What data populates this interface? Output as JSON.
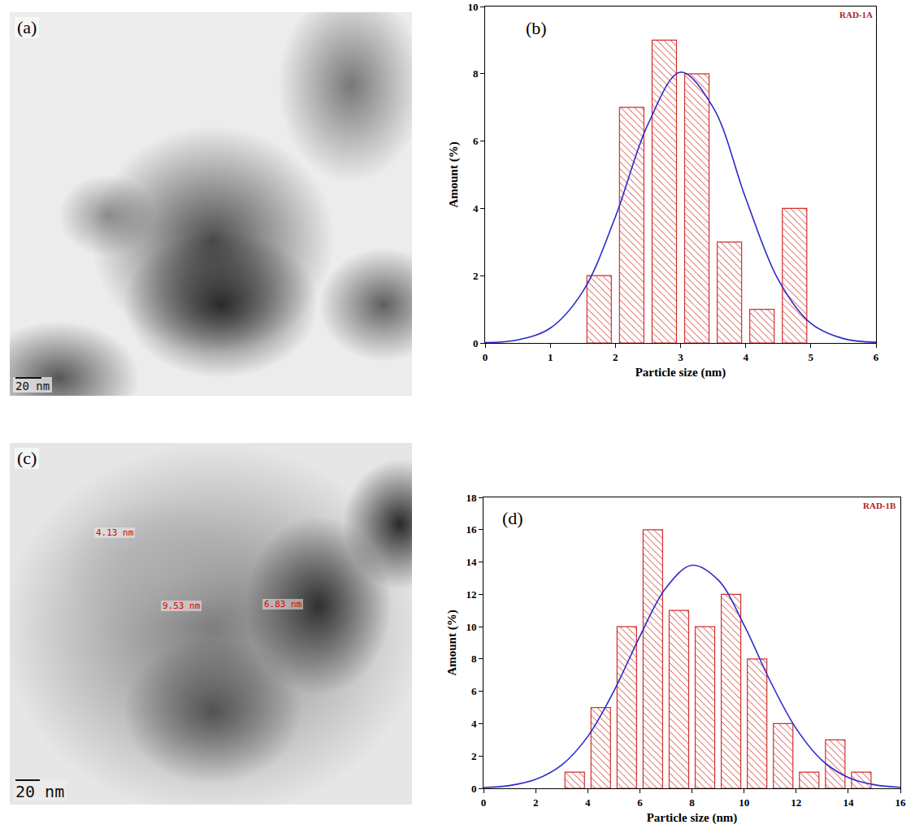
{
  "images": [
    {
      "label": "(a)",
      "scale_bar": "20 nm"
    },
    {
      "label": "(c)",
      "scale_bar": "20 nm",
      "measurements": [
        "4.13 nm",
        "9.53 nm",
        "6.83 nm"
      ]
    }
  ],
  "chart_data": [
    {
      "type": "histogram",
      "label": "(b)",
      "title": "RAD-1A",
      "x_label": "Particle size (nm)",
      "y_label": "Amount (%)",
      "bins": [
        1.5,
        2.0,
        2.5,
        3.0,
        3.5,
        4.0,
        4.5,
        5.0
      ],
      "values": [
        2,
        7,
        9,
        8,
        3,
        1,
        4
      ],
      "color": "#d0312d",
      "fit": {
        "type": "line",
        "color": "#2b2bc8",
        "x": [
          0,
          0.5,
          1,
          1.5,
          2,
          2.5,
          3,
          3.5,
          4,
          4.5,
          5,
          5.5,
          6
        ],
        "values": [
          0.01,
          0.09,
          0.44,
          1.53,
          3.75,
          6.5,
          8.05,
          7.0,
          4.3,
          1.88,
          0.58,
          0.13,
          0.02
        ]
      },
      "xlim": [
        0,
        6
      ],
      "xticks": [
        0,
        1,
        2,
        3,
        4,
        5,
        6
      ],
      "ylim": [
        0,
        10
      ],
      "yticks": [
        0,
        2,
        4,
        6,
        8,
        10
      ],
      "grid": false
    },
    {
      "type": "histogram",
      "label": "(d)",
      "title": "RAD-1B",
      "x_label": "Particle size (nm)",
      "y_label": "Amount (%)",
      "bins": [
        3,
        4,
        5,
        6,
        7,
        8,
        9,
        10,
        11,
        12,
        13,
        14,
        15
      ],
      "values": [
        1,
        5,
        10,
        16,
        11,
        10,
        12,
        8,
        4,
        1,
        3,
        1
      ],
      "color": "#d0312d",
      "fit": {
        "type": "line",
        "color": "#2b2bc8",
        "x": [
          0,
          1,
          2,
          3,
          4,
          5,
          6,
          7,
          8,
          9,
          10,
          11,
          12,
          13,
          14,
          15,
          16
        ],
        "values": [
          0.05,
          0.17,
          0.55,
          1.44,
          3.2,
          6.0,
          9.4,
          12.4,
          13.8,
          12.9,
          10.1,
          6.65,
          3.7,
          1.72,
          0.67,
          0.22,
          0.06
        ]
      },
      "xlim": [
        0,
        16
      ],
      "xticks": [
        0,
        2,
        4,
        6,
        8,
        10,
        12,
        14,
        16
      ],
      "ylim": [
        0,
        18
      ],
      "yticks": [
        0,
        2,
        4,
        6,
        8,
        10,
        12,
        14,
        16,
        18
      ],
      "grid": false
    }
  ]
}
